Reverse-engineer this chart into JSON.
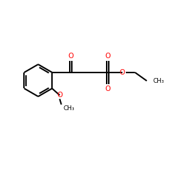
{
  "bg_color": "#ffffff",
  "bond_color": "#000000",
  "oxygen_color": "#ff0000",
  "line_width": 1.5,
  "fig_size": [
    2.5,
    2.5
  ],
  "dpi": 100,
  "xlim": [
    0,
    10
  ],
  "ylim": [
    0,
    10
  ]
}
